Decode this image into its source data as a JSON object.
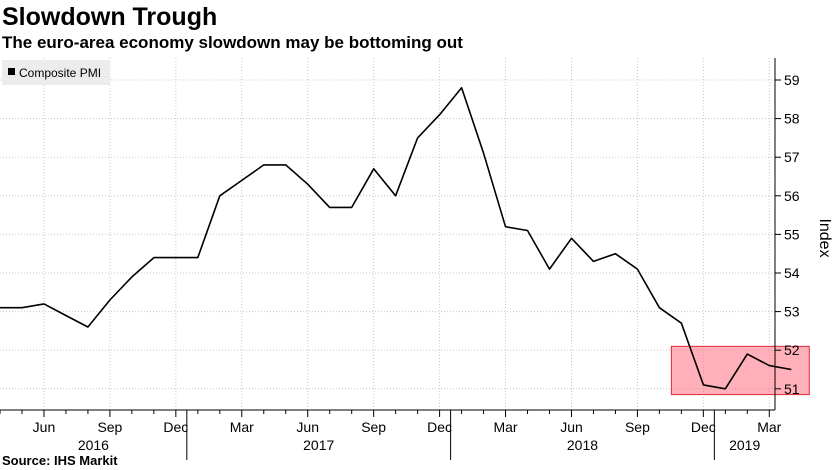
{
  "header": {
    "title": "Slowdown Trough",
    "subtitle": "The euro-area economy slowdown may be bottoming out"
  },
  "footer": {
    "source": "Source: IHS Markit"
  },
  "chart_data": {
    "type": "line",
    "title": "Slowdown Trough",
    "subtitle": "The euro-area economy slowdown may be bottoming out",
    "ylabel": "Index",
    "ylim": [
      50.6,
      59.3
    ],
    "y_ticks": [
      51,
      52,
      53,
      54,
      55,
      56,
      57,
      58,
      59
    ],
    "y_axis_side": "right",
    "grid": true,
    "legend": {
      "position": "top-left",
      "entries": [
        "Composite PMI"
      ]
    },
    "x_month_ticks": [
      "Jun",
      "Sep",
      "Dec",
      "Mar",
      "Jun",
      "Sep",
      "Dec",
      "Mar",
      "Jun",
      "Sep",
      "Dec",
      "Mar"
    ],
    "x_year_labels": [
      "2016",
      "2017",
      "2018",
      "2019"
    ],
    "x": [
      "2016-04",
      "2016-05",
      "2016-06",
      "2016-07",
      "2016-08",
      "2016-09",
      "2016-10",
      "2016-11",
      "2016-12",
      "2017-01",
      "2017-02",
      "2017-03",
      "2017-04",
      "2017-05",
      "2017-06",
      "2017-07",
      "2017-08",
      "2017-09",
      "2017-10",
      "2017-11",
      "2017-12",
      "2018-01",
      "2018-02",
      "2018-03",
      "2018-04",
      "2018-05",
      "2018-06",
      "2018-07",
      "2018-08",
      "2018-09",
      "2018-10",
      "2018-11",
      "2018-12",
      "2019-01",
      "2019-02",
      "2019-03",
      "2019-04"
    ],
    "series": [
      {
        "name": "Composite PMI",
        "color": "#000000",
        "values": [
          53.1,
          53.1,
          53.2,
          52.9,
          52.6,
          53.3,
          53.9,
          54.4,
          54.4,
          54.4,
          56.0,
          56.4,
          56.8,
          56.8,
          56.3,
          55.7,
          55.7,
          56.7,
          56.0,
          57.5,
          58.1,
          58.8,
          57.1,
          55.2,
          55.1,
          54.1,
          54.9,
          54.3,
          54.5,
          54.1,
          53.1,
          52.7,
          51.1,
          51.0,
          51.9,
          51.6,
          51.5
        ]
      }
    ],
    "highlight": {
      "x_start": "2018-11",
      "x_end": "2019-04",
      "y_range": [
        50.85,
        52.1
      ],
      "color": "#ff6f7d"
    }
  }
}
